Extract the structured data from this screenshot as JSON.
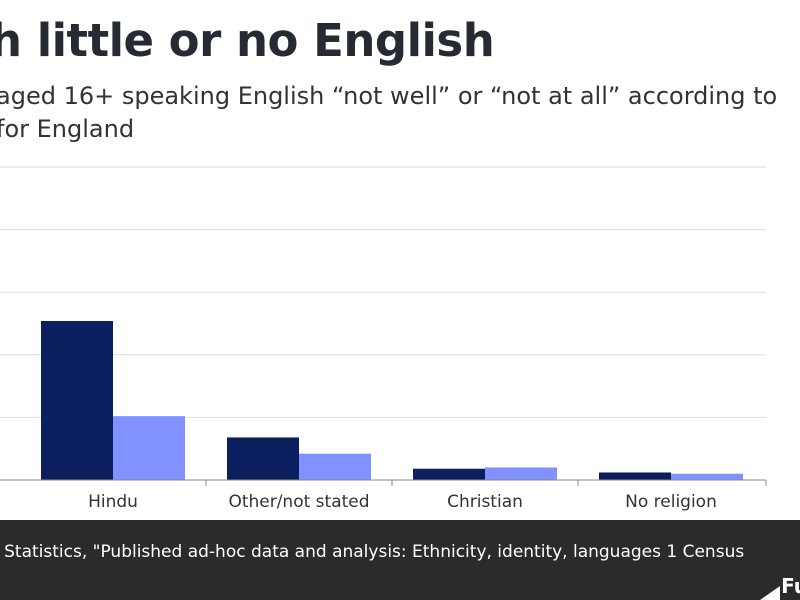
{
  "header": {
    "title": "h little or no English",
    "subtitle": "aged 16+ speaking English “not well” or “not at all” according to for England"
  },
  "footer": {
    "source": "l Statistics, \"Published ad-hoc data and analysis: Ethnicity, identity, languages 1 Census",
    "logo": "Fu"
  },
  "colors": {
    "series_dark": "#0b1f5e",
    "series_light": "#8191ff",
    "grid": "#dddddd",
    "axis": "#888888"
  },
  "chart_data": {
    "type": "bar",
    "categories": [
      "Hindu",
      "Other/not stated",
      "Christian",
      "No religion"
    ],
    "series": [
      {
        "values": [
          12.7,
          3.4,
          0.9,
          0.6
        ]
      },
      {
        "values": [
          5.1,
          2.1,
          1.0,
          0.5
        ]
      }
    ],
    "ylim": [
      0,
      25
    ],
    "yticks": [
      0,
      5,
      10,
      15,
      20,
      25
    ],
    "grid": true
  }
}
